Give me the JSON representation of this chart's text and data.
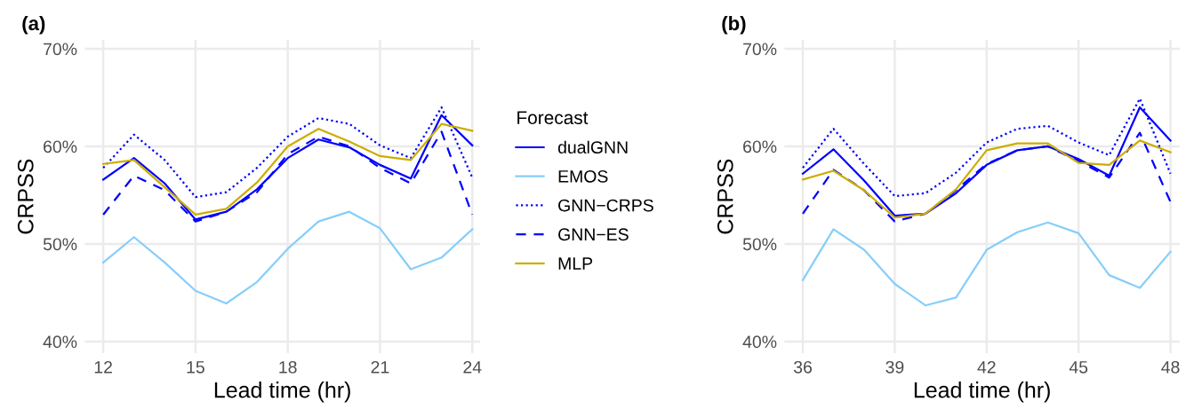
{
  "chart_data": [
    {
      "type": "line",
      "title": "(a)",
      "xlabel": "Lead time (hr)",
      "ylabel": "CRPSS",
      "legend_title": "Forecast",
      "legend": "right",
      "grid": true,
      "x": [
        12,
        13,
        14,
        15,
        16,
        17,
        18,
        19,
        20,
        21,
        22,
        23,
        24
      ],
      "xlim": [
        11.4,
        24.25
      ],
      "xticks": [
        12,
        15,
        18,
        21,
        24
      ],
      "ylim": [
        38.8,
        70.9
      ],
      "yticks": [
        {
          "value": 40,
          "label": "40%"
        },
        {
          "value": 50,
          "label": "50%"
        },
        {
          "value": 60,
          "label": "60%"
        },
        {
          "value": 70,
          "label": "70%"
        }
      ],
      "series": [
        {
          "name": "dualGNN",
          "color": "#0000ff",
          "line_style": "solid",
          "values": [
            56.6,
            58.8,
            56.2,
            52.5,
            53.3,
            55.6,
            58.8,
            60.7,
            59.9,
            58.1,
            56.7,
            63.2,
            60.1
          ]
        },
        {
          "name": "EMOS",
          "color": "#87cefa",
          "line_style": "solid",
          "values": [
            48.1,
            50.7,
            48.1,
            45.2,
            43.9,
            46.1,
            49.5,
            52.3,
            53.3,
            51.6,
            47.4,
            48.6,
            51.5
          ]
        },
        {
          "name": "GNN−CRPS",
          "color": "#0000ff",
          "line_style": "dotted",
          "values": [
            57.8,
            61.2,
            58.6,
            54.8,
            55.3,
            57.8,
            61.0,
            62.9,
            62.3,
            60.1,
            58.8,
            64.0,
            56.8
          ]
        },
        {
          "name": "GNN−ES",
          "color": "#0000ff",
          "line_style": "dashed",
          "values": [
            53.0,
            57.0,
            55.5,
            52.3,
            53.3,
            55.3,
            59.2,
            61.0,
            60.0,
            57.8,
            56.2,
            61.5,
            53.0
          ]
        },
        {
          "name": "MLP",
          "color": "#cdad00",
          "line_style": "solid",
          "values": [
            58.2,
            58.6,
            55.8,
            53.0,
            53.6,
            56.3,
            60.0,
            61.8,
            60.5,
            59.0,
            58.6,
            62.3,
            61.6
          ]
        }
      ]
    },
    {
      "type": "line",
      "title": "(b)",
      "xlabel": "Lead time (hr)",
      "ylabel": "CRPSS",
      "grid": true,
      "x": [
        36,
        37,
        38,
        39,
        40,
        41,
        42,
        43,
        44,
        45,
        46,
        47,
        48
      ],
      "xlim": [
        35.4,
        48.3
      ],
      "xticks": [
        36,
        39,
        42,
        45,
        48
      ],
      "ylim": [
        38.8,
        70.9
      ],
      "yticks": [
        {
          "value": 40,
          "label": "40%"
        },
        {
          "value": 50,
          "label": "50%"
        },
        {
          "value": 60,
          "label": "60%"
        },
        {
          "value": 70,
          "label": "70%"
        }
      ],
      "series": [
        {
          "color": "#0000ff",
          "line_style": "solid",
          "values": [
            57.2,
            59.7,
            56.5,
            52.9,
            53.1,
            55.2,
            58.1,
            59.6,
            60.0,
            58.7,
            57.0,
            64.0,
            60.6
          ]
        },
        {
          "color": "#87cefa",
          "line_style": "solid",
          "values": [
            46.3,
            51.5,
            49.4,
            45.9,
            43.7,
            44.5,
            49.4,
            51.2,
            52.2,
            51.1,
            46.8,
            45.5,
            49.2
          ]
        },
        {
          "color": "#0000ff",
          "line_style": "dotted",
          "values": [
            57.8,
            61.8,
            58.2,
            54.9,
            55.2,
            57.3,
            60.4,
            61.8,
            62.1,
            60.4,
            59.1,
            64.9,
            57.2
          ]
        },
        {
          "color": "#0000ff",
          "line_style": "dashed",
          "values": [
            53.1,
            57.6,
            55.5,
            52.3,
            53.1,
            55.5,
            58.2,
            59.6,
            60.0,
            58.5,
            56.8,
            61.4,
            54.3
          ]
        },
        {
          "color": "#cdad00",
          "line_style": "solid",
          "values": [
            56.6,
            57.5,
            55.5,
            52.7,
            53.1,
            55.6,
            59.6,
            60.3,
            60.3,
            58.3,
            58.1,
            60.6,
            59.4
          ]
        }
      ]
    }
  ]
}
